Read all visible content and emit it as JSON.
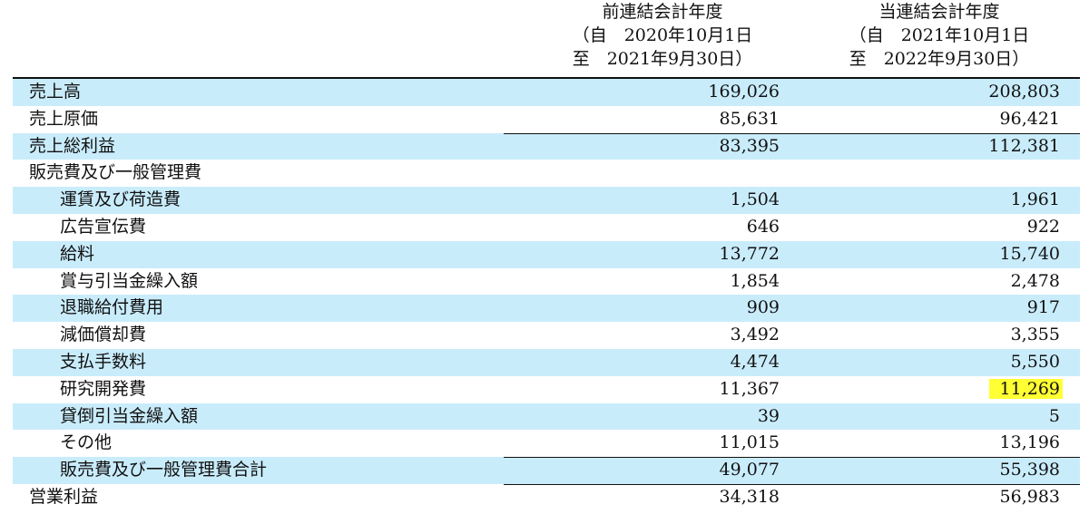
{
  "headers": {
    "prev": {
      "title": "前連結会計年度",
      "from": "（自　2020年10月1日",
      "to": "至　2021年9月30日）"
    },
    "curr": {
      "title": "当連結会計年度",
      "from": "（自　2021年10月1日",
      "to": "至　2022年9月30日）"
    }
  },
  "highlight_color": "#ffff33",
  "shade_color": "#c9ecfb",
  "rows": [
    {
      "label": "売上高",
      "prev": "169,026",
      "curr": "208,803"
    },
    {
      "label": "売上原価",
      "prev": "85,631",
      "curr": "96,421"
    },
    {
      "label": "売上総利益",
      "prev": "83,395",
      "curr": "112,381"
    },
    {
      "label": "販売費及び一般管理費",
      "prev": "",
      "curr": ""
    },
    {
      "label": "運賃及び荷造費",
      "prev": "1,504",
      "curr": "1,961"
    },
    {
      "label": "広告宣伝費",
      "prev": "646",
      "curr": "922"
    },
    {
      "label": "給料",
      "prev": "13,772",
      "curr": "15,740"
    },
    {
      "label": "賞与引当金繰入額",
      "prev": "1,854",
      "curr": "2,478"
    },
    {
      "label": "退職給付費用",
      "prev": "909",
      "curr": "917"
    },
    {
      "label": "減価償却費",
      "prev": "3,492",
      "curr": "3,355"
    },
    {
      "label": "支払手数料",
      "prev": "4,474",
      "curr": "5,550"
    },
    {
      "label": "研究開発費",
      "prev": "11,367",
      "curr": "11,269"
    },
    {
      "label": "貸倒引当金繰入額",
      "prev": "39",
      "curr": "5"
    },
    {
      "label": "その他",
      "prev": "11,015",
      "curr": "13,196"
    },
    {
      "label": "販売費及び一般管理費合計",
      "prev": "49,077",
      "curr": "55,398"
    },
    {
      "label": "営業利益",
      "prev": "34,318",
      "curr": "56,983"
    }
  ]
}
